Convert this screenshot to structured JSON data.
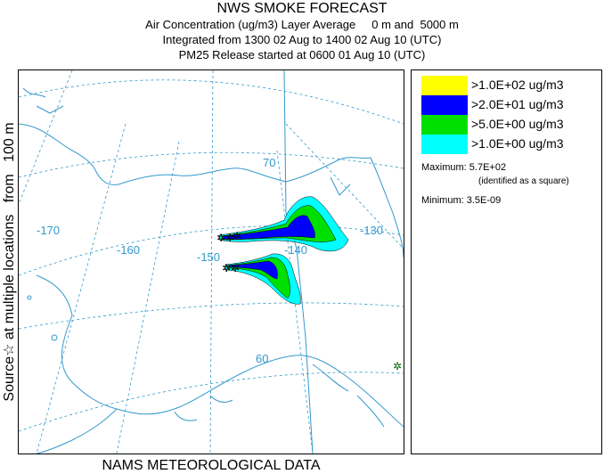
{
  "title": {
    "line1": "NWS SMOKE FORECAST",
    "line2": "Air Concentration (ug/m3) Layer Average     0 m and  5000 m",
    "line3": "Integrated from 1300 02 Aug to 1400 02 Aug 10 (UTC)",
    "line4": "PM25 Release started at 0600 01 Aug 10 (UTC)"
  },
  "side_label": "Source☆ at multiple locations   from   100 m",
  "footer": "NAMS METEOROLOGICAL DATA",
  "map": {
    "graticule_labels": {
      "lon_170": "-170",
      "lon_160": "-160",
      "lon_150": "-150",
      "lon_140": "-140",
      "lon_130": "-130",
      "lat_70": "70",
      "lat_60": "60"
    },
    "colors": {
      "coast": "#3399cc",
      "graticule": "#3399cc",
      "level_yellow": "#ffff00",
      "level_blue": "#0000ff",
      "level_green": "#00e000",
      "level_cyan": "#00ffff"
    }
  },
  "legend": {
    "levels": [
      {
        "label": ">1.0E+02 ug/m3",
        "color": "#ffff00"
      },
      {
        "label": ">2.0E+01 ug/m3",
        "color": "#0000ff"
      },
      {
        "label": ">5.0E+00 ug/m3",
        "color": "#00e000"
      },
      {
        "label": ">1.0E+00 ug/m3",
        "color": "#00ffff"
      }
    ],
    "maximum_label": "Maximum: 5.7E+02",
    "maximum_note": "(identified as a square)",
    "minimum_label": "Minimum: 3.5E-09"
  }
}
